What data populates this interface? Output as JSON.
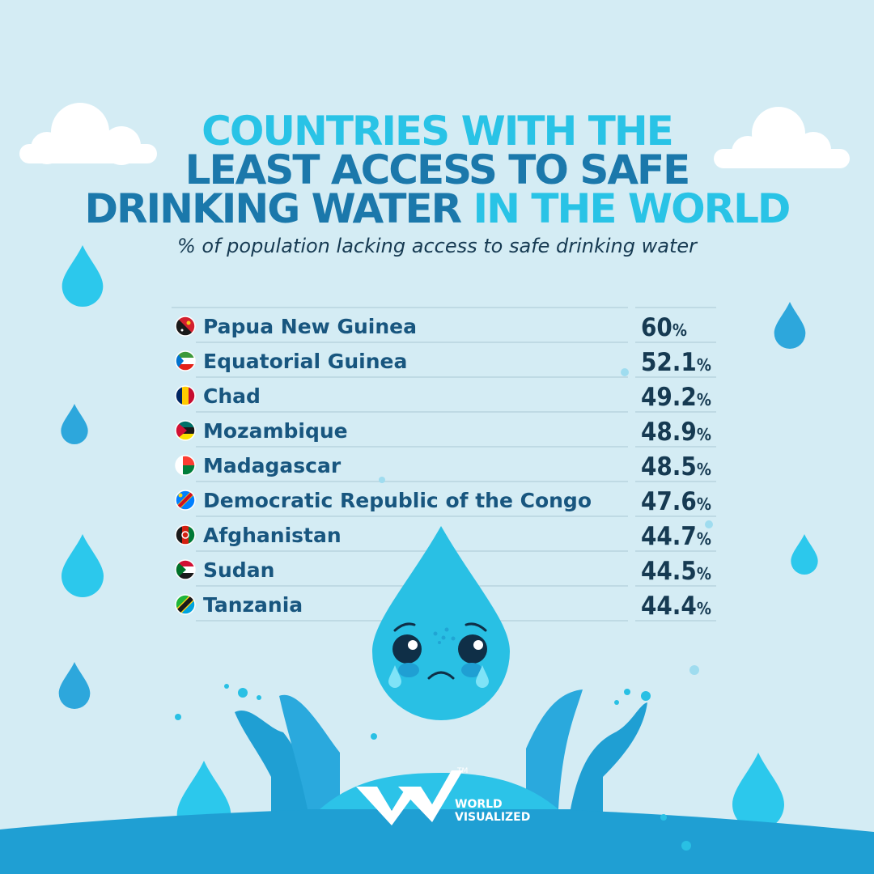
{
  "title": {
    "line1": "COUNTRIES WITH THE",
    "line2": "LEAST ACCESS TO SAFE",
    "line3_a": "DRINKING WATER ",
    "line3_b": "IN THE WORLD"
  },
  "subtitle": "% of population lacking access to safe drinking water",
  "brand": {
    "name": "WORLD VISUALIZED",
    "line1": "WORLD",
    "line2": "VISUALIZED",
    "trademark": "TM"
  },
  "colors": {
    "background": "#d4ecf4",
    "title_light": "#29c3e6",
    "title_dark": "#1b78ab",
    "label": "#18567f",
    "value": "#163a52",
    "drop": "#29c3e6",
    "splash_dark": "#1f9fd3"
  },
  "chart_data": {
    "type": "table",
    "title": "COUNTRIES WITH THE LEAST ACCESS TO SAFE DRINKING WATER IN THE WORLD",
    "subtitle": "% of population lacking access to safe drinking water",
    "unit": "%",
    "categories": [
      "Papua New Guinea",
      "Equatorial Guinea",
      "Chad",
      "Mozambique",
      "Madagascar",
      "Democratic Republic of the Congo",
      "Afghanistan",
      "Sudan",
      "Tanzania"
    ],
    "values": [
      60,
      52.1,
      49.2,
      48.9,
      48.5,
      47.6,
      44.7,
      44.5,
      44.4
    ],
    "value_labels": [
      "60",
      "52.1",
      "49.2",
      "48.9",
      "48.5",
      "47.6",
      "44.7",
      "44.5",
      "44.4"
    ],
    "flag_icons": [
      "papua-new-guinea-flag-icon",
      "equatorial-guinea-flag-icon",
      "chad-flag-icon",
      "mozambique-flag-icon",
      "madagascar-flag-icon",
      "drc-flag-icon",
      "afghanistan-flag-icon",
      "sudan-flag-icon",
      "tanzania-flag-icon"
    ]
  }
}
